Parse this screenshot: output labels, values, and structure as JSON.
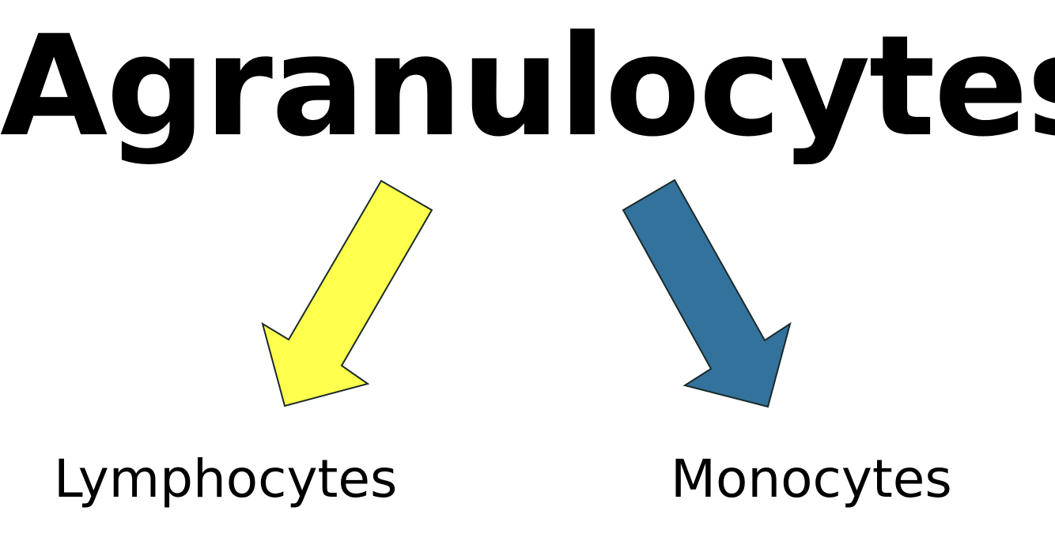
{
  "diagram": {
    "title": "Agranulocytes",
    "branches": [
      {
        "label": "Lymphocytes",
        "arrow_color": "#FFFF4D",
        "arrow_icon": "arrow-down-left-icon"
      },
      {
        "label": "Monocytes",
        "arrow_color": "#33729C",
        "arrow_icon": "arrow-down-right-icon"
      }
    ],
    "arrow_outline_color": "#1a2a2a",
    "text_color": "#000000",
    "background_color": "#ffffff"
  }
}
